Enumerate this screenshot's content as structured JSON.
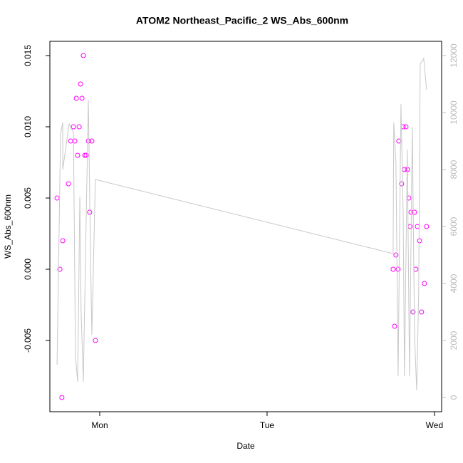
{
  "chart_data": {
    "type": "scatter",
    "title": "ATOM2 Northeast_Pacific_2 WS_Abs_600nm",
    "x_label": "Date",
    "y_label": "WS_Abs_600nm",
    "xlim": [
      -0.298,
      2.043
    ],
    "xticks": [
      {
        "value": 0,
        "label": "Mon"
      },
      {
        "value": 1,
        "label": "Tue"
      },
      {
        "value": 2,
        "label": "Wed"
      }
    ],
    "ylim": [
      -0.01,
      0.016
    ],
    "yticks": [
      -0.005,
      {
        "value": 0,
        "label": "0.000"
      },
      0.005,
      {
        "value": 0.01,
        "label": "0.010"
      },
      0.015
    ],
    "y2lim": [
      -500,
      12500
    ],
    "y2ticks": [
      0,
      2000,
      4000,
      6000,
      8000,
      10000,
      12000
    ],
    "y2_color": "#bbbbbb",
    "series": [
      {
        "type": "scatter",
        "color": "#ff00ff",
        "x": [
          -0.255,
          -0.238,
          -0.226,
          -0.221,
          -0.187,
          -0.174,
          -0.157,
          -0.149,
          -0.14,
          -0.132,
          -0.123,
          -0.115,
          -0.106,
          -0.098,
          -0.089,
          -0.081,
          -0.068,
          -0.06,
          -0.047,
          -0.026,
          1.753,
          1.762,
          1.77,
          1.783,
          1.787,
          1.804,
          1.813,
          1.821,
          1.83,
          1.838,
          1.847,
          1.855,
          1.86,
          1.872,
          1.881,
          1.889,
          1.898,
          1.911,
          1.923,
          1.94,
          1.953
        ],
        "values": [
          0.005,
          0,
          -0.009,
          0.002,
          0.006,
          0.009,
          0.01,
          0.009,
          0.012,
          0.008,
          0.01,
          0.013,
          0.012,
          0.015,
          0.008,
          0.008,
          0.009,
          0.004,
          0.009,
          -0.005,
          0,
          -0.004,
          0.001,
          0,
          0.009,
          0.006,
          0.01,
          0.007,
          0.01,
          0.007,
          0.005,
          0.003,
          0.004,
          -0.003,
          0.004,
          0,
          0.003,
          0.002,
          -0.003,
          -0.001,
          0.003
        ]
      },
      {
        "type": "line",
        "color": "#c8c8c8",
        "axis": "y2",
        "x": [
          -0.255,
          -0.234,
          -0.221,
          -0.221,
          -0.183,
          -0.17,
          -0.157,
          -0.145,
          -0.132,
          -0.119,
          -0.111,
          -0.098,
          -0.085,
          -0.068,
          -0.055,
          -0.047,
          -0.026,
          1.753,
          1.757,
          1.77,
          1.783,
          1.8,
          1.813,
          1.821,
          1.838,
          1.851,
          1.868,
          1.881,
          1.894,
          1.906,
          1.915,
          1.936,
          1.953
        ],
        "values": [
          1150,
          9250,
          9650,
          8000,
          9600,
          9450,
          9300,
          1450,
          550,
          7050,
          2950,
          550,
          4950,
          10450,
          4950,
          2200,
          7650,
          5050,
          9650,
          8200,
          750,
          10300,
          6450,
          750,
          8700,
          750,
          9500,
          2200,
          250,
          3700,
          11700,
          11900,
          10800
        ]
      }
    ]
  }
}
